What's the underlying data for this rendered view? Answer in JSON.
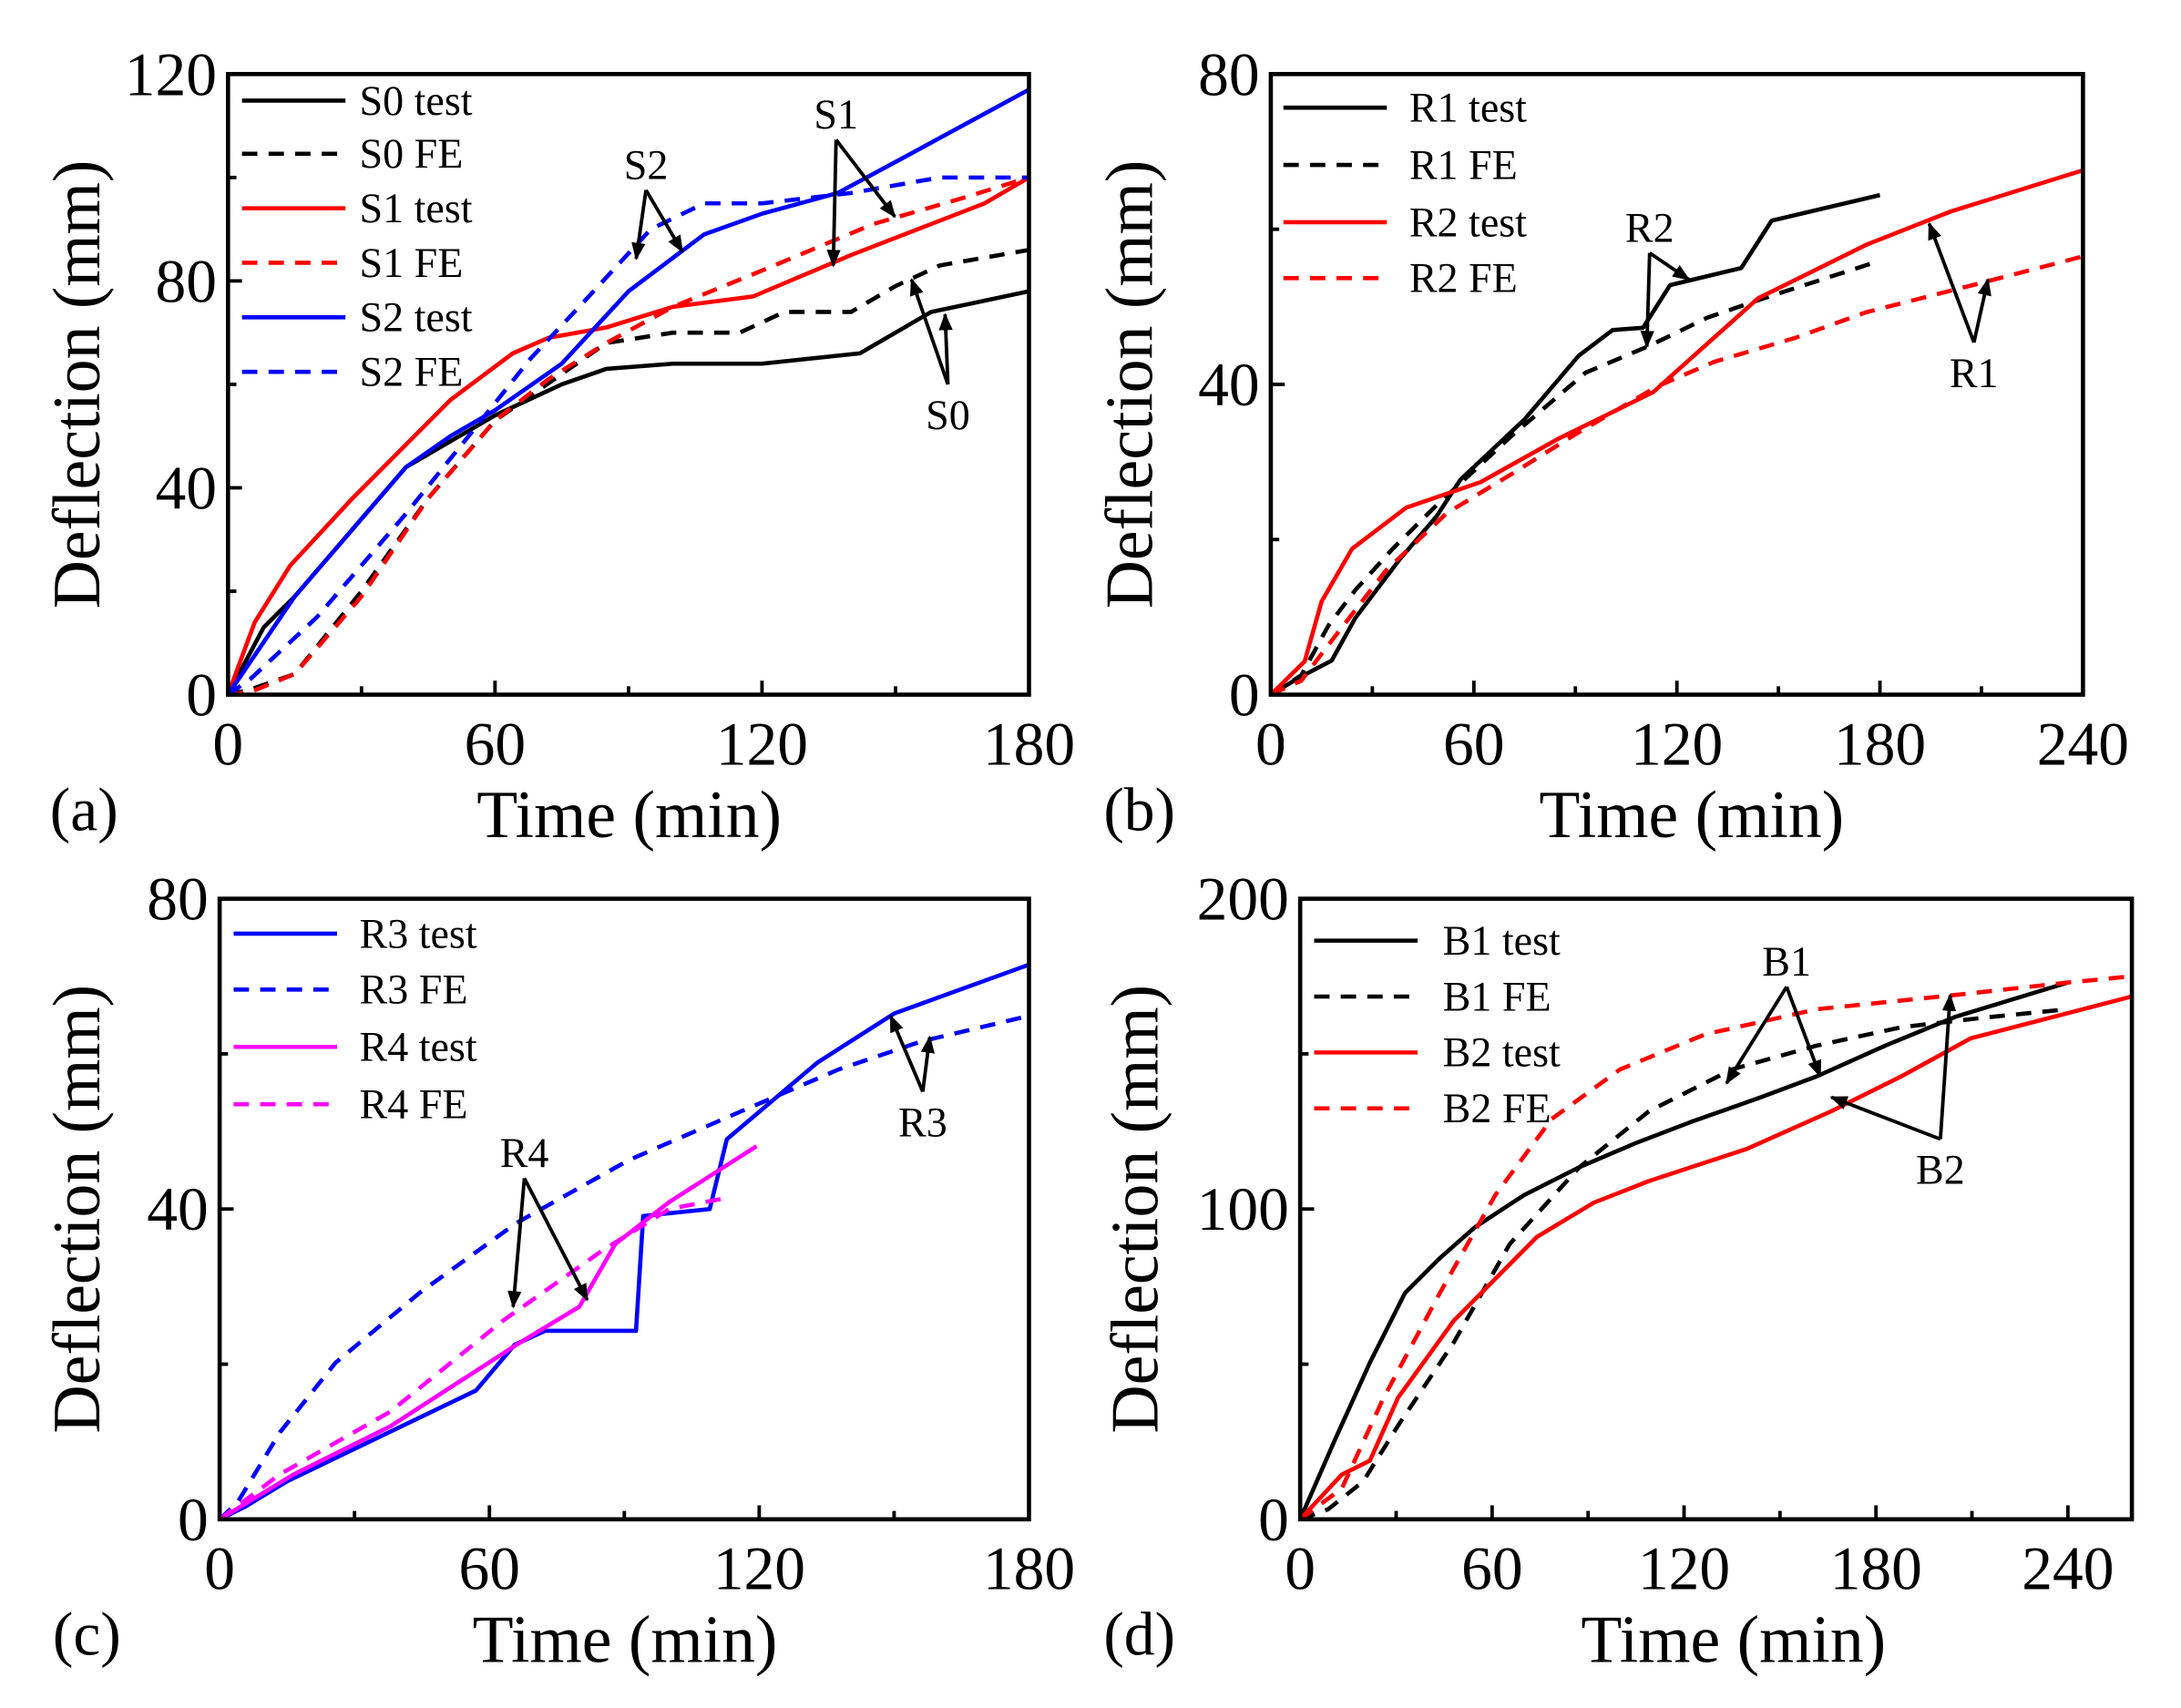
{
  "chart_data": [
    {
      "panel": "(a)",
      "type": "line",
      "xlabel": "Time (min)",
      "ylabel": "Deflection (mm)",
      "xlim": [
        0,
        180
      ],
      "ylim": [
        0,
        120
      ],
      "xticks": [
        0,
        60,
        120,
        180
      ],
      "yticks": [
        0,
        40,
        80,
        120
      ],
      "legend_position": "top-left",
      "series": [
        {
          "name": "S0 test",
          "color": "#000000",
          "dash": false,
          "points": [
            [
              0,
              0
            ],
            [
              8,
              13
            ],
            [
              15,
              19
            ],
            [
              40,
              44
            ],
            [
              60,
              54
            ],
            [
              75,
              60
            ],
            [
              85,
              63
            ],
            [
              100,
              64
            ],
            [
              120,
              64
            ],
            [
              142,
              66
            ],
            [
              158,
              74
            ],
            [
              180,
              78
            ]
          ]
        },
        {
          "name": "S0 FE",
          "color": "#000000",
          "dash": true,
          "points": [
            [
              0,
              0
            ],
            [
              5,
              1
            ],
            [
              15,
              4
            ],
            [
              30,
              20
            ],
            [
              45,
              38
            ],
            [
              60,
              53
            ],
            [
              75,
              62
            ],
            [
              85,
              68
            ],
            [
              100,
              70
            ],
            [
              115,
              70
            ],
            [
              125,
              74
            ],
            [
              140,
              74
            ],
            [
              150,
              79
            ],
            [
              160,
              83
            ],
            [
              180,
              86
            ]
          ]
        },
        {
          "name": "S1 test",
          "color": "#ff0000",
          "dash": false,
          "points": [
            [
              0,
              0
            ],
            [
              6,
              14
            ],
            [
              14,
              25
            ],
            [
              28,
              38
            ],
            [
              50,
              57
            ],
            [
              64,
              66
            ],
            [
              72,
              69
            ],
            [
              85,
              71
            ],
            [
              100,
              75
            ],
            [
              118,
              77
            ],
            [
              140,
              85
            ],
            [
              170,
              95
            ],
            [
              180,
              100
            ]
          ]
        },
        {
          "name": "S1 FE",
          "color": "#ff0000",
          "dash": true,
          "points": [
            [
              0,
              0
            ],
            [
              5,
              0.5
            ],
            [
              15,
              4
            ],
            [
              30,
              19
            ],
            [
              45,
              38
            ],
            [
              60,
              53
            ],
            [
              72,
              61
            ],
            [
              85,
              68
            ],
            [
              100,
              75
            ],
            [
              120,
              82
            ],
            [
              145,
              91
            ],
            [
              165,
              96
            ],
            [
              180,
              100
            ]
          ]
        },
        {
          "name": "S2 test",
          "color": "#0000ff",
          "dash": false,
          "points": [
            [
              0,
              0
            ],
            [
              15,
              19
            ],
            [
              40,
              44
            ],
            [
              50,
              50
            ],
            [
              60,
              55
            ],
            [
              75,
              64
            ],
            [
              90,
              78
            ],
            [
              107,
              89
            ],
            [
              120,
              93
            ],
            [
              137,
              97
            ],
            [
              150,
              103
            ],
            [
              180,
              117
            ]
          ]
        },
        {
          "name": "S2 FE",
          "color": "#0000ff",
          "dash": true,
          "points": [
            [
              0,
              0
            ],
            [
              5,
              3
            ],
            [
              20,
              15
            ],
            [
              40,
              35
            ],
            [
              55,
              51
            ],
            [
              68,
              65
            ],
            [
              80,
              76
            ],
            [
              95,
              90
            ],
            [
              107,
              95
            ],
            [
              120,
              95
            ],
            [
              140,
              97
            ],
            [
              160,
              100
            ],
            [
              180,
              100
            ]
          ]
        }
      ],
      "annotations": [
        "S2",
        "S1",
        "S0"
      ]
    },
    {
      "panel": "(b)",
      "type": "line",
      "xlabel": "Time (min)",
      "ylabel": "Deflection (mm)",
      "xlim": [
        0,
        240
      ],
      "ylim": [
        0,
        80
      ],
      "xticks": [
        0,
        60,
        120,
        180,
        240
      ],
      "yticks": [
        0,
        40,
        80
      ],
      "legend_position": "top-left",
      "series": [
        {
          "name": "R1 test",
          "color": "#000000",
          "dash": false,
          "points": [
            [
              0,
              0
            ],
            [
              8,
              2.1
            ],
            [
              18,
              4.4
            ],
            [
              25,
              9.9
            ],
            [
              38,
              17.4
            ],
            [
              49,
              23
            ],
            [
              56,
              27.7
            ],
            [
              75,
              35.5
            ],
            [
              91,
              43.7
            ],
            [
              101,
              47
            ],
            [
              110,
              47.3
            ],
            [
              118,
              52.8
            ],
            [
              139,
              55
            ],
            [
              148,
              61.1
            ],
            [
              180,
              64.4
            ]
          ]
        },
        {
          "name": "R1 FE",
          "color": "#000000",
          "dash": true,
          "points": [
            [
              0,
              0
            ],
            [
              9,
              2.5
            ],
            [
              17,
              8.9
            ],
            [
              25,
              13.5
            ],
            [
              36,
              18.8
            ],
            [
              48,
              24
            ],
            [
              71,
              33.3
            ],
            [
              93,
              41.5
            ],
            [
              112,
              45
            ],
            [
              129,
              48.6
            ],
            [
              145,
              51
            ],
            [
              179,
              55.8
            ]
          ]
        },
        {
          "name": "R2 test",
          "color": "#ff0000",
          "dash": false,
          "points": [
            [
              0,
              0
            ],
            [
              10,
              4.3
            ],
            [
              15,
              12
            ],
            [
              24,
              18.8
            ],
            [
              40,
              24.1
            ],
            [
              62,
              27.4
            ],
            [
              85,
              33
            ],
            [
              113,
              39
            ],
            [
              144,
              51.1
            ],
            [
              176,
              58
            ],
            [
              201,
              62.3
            ],
            [
              240,
              67.6
            ]
          ]
        },
        {
          "name": "R2 FE",
          "color": "#ff0000",
          "dash": true,
          "points": [
            [
              0,
              0
            ],
            [
              9,
              1.8
            ],
            [
              17,
              6.4
            ],
            [
              34,
              16
            ],
            [
              52,
              23.4
            ],
            [
              71,
              28.4
            ],
            [
              89,
              33.3
            ],
            [
              114,
              39.7
            ],
            [
              131,
              42.9
            ],
            [
              155,
              46
            ],
            [
              176,
              49.3
            ],
            [
              211,
              53.2
            ],
            [
              240,
              56.5
            ]
          ]
        }
      ],
      "annotations": [
        "R2",
        "R1"
      ]
    },
    {
      "panel": "(c)",
      "type": "line",
      "xlabel": "Time (min)",
      "ylabel": "Deflection (mm)",
      "xlim": [
        0,
        180
      ],
      "ylim": [
        0,
        80
      ],
      "xticks": [
        0,
        60,
        120,
        180
      ],
      "yticks": [
        0,
        40,
        80
      ],
      "legend_position": "top-left",
      "series": [
        {
          "name": "R3 test",
          "color": "#0000ff",
          "dash": false,
          "points": [
            [
              0,
              0
            ],
            [
              5.6,
              1.6
            ],
            [
              15,
              4.9
            ],
            [
              57,
              16.6
            ],
            [
              65.6,
              22.5
            ],
            [
              72.4,
              24.3
            ],
            [
              92.6,
              24.3
            ],
            [
              94.2,
              39.1
            ],
            [
              109,
              40
            ],
            [
              112.8,
              49
            ],
            [
              133,
              58.9
            ],
            [
              150,
              65.2
            ],
            [
              180,
              71.5
            ]
          ]
        },
        {
          "name": "R3 FE",
          "color": "#0000ff",
          "dash": true,
          "points": [
            [
              0,
              0
            ],
            [
              4,
              2.2
            ],
            [
              13.4,
              11.2
            ],
            [
              25.8,
              20.2
            ],
            [
              44.5,
              29.2
            ],
            [
              66,
              38.2
            ],
            [
              91,
              46.3
            ],
            [
              116,
              52.6
            ],
            [
              137.7,
              58
            ],
            [
              156,
              61.6
            ],
            [
              180,
              64.9
            ]
          ]
        },
        {
          "name": "R4 test",
          "color": "#ff00ff",
          "dash": false,
          "points": [
            [
              0,
              0
            ],
            [
              16.5,
              5.8
            ],
            [
              38,
              12
            ],
            [
              66,
              22.5
            ],
            [
              80,
              27.4
            ],
            [
              88,
              35.5
            ],
            [
              100,
              40.9
            ],
            [
              119.4,
              48.1
            ]
          ]
        },
        {
          "name": "R4 FE",
          "color": "#ff00ff",
          "dash": true,
          "points": [
            [
              0,
              0
            ],
            [
              13.4,
              5.8
            ],
            [
              38,
              13.9
            ],
            [
              63,
              25.6
            ],
            [
              85,
              34.6
            ],
            [
              100,
              40
            ],
            [
              111.6,
              41.3
            ]
          ]
        }
      ],
      "annotations": [
        "R4",
        "R3"
      ]
    },
    {
      "panel": "(d)",
      "type": "line",
      "xlabel": "Time (min)",
      "ylabel": "Deflection (mm)",
      "xlim": [
        0,
        260
      ],
      "ylim": [
        0,
        200
      ],
      "xticks": [
        0,
        60,
        120,
        180,
        240
      ],
      "yticks": [
        0,
        100,
        200
      ],
      "legend_position": "top-left",
      "series": [
        {
          "name": "B1 test",
          "color": "#000000",
          "dash": false,
          "points": [
            [
              0,
              0
            ],
            [
              10.9,
              25.7
            ],
            [
              21.8,
              50.5
            ],
            [
              32.8,
              73
            ],
            [
              43.7,
              84.2
            ],
            [
              54.6,
              94.1
            ],
            [
              70,
              104.5
            ],
            [
              87.3,
              113.5
            ],
            [
              104.8,
              121.2
            ],
            [
              122,
              128
            ],
            [
              144,
              136
            ],
            [
              161.6,
              142.8
            ],
            [
              183,
              152.7
            ],
            [
              205,
              162
            ],
            [
              240,
              173
            ]
          ]
        },
        {
          "name": "B1 FE",
          "color": "#000000",
          "dash": true,
          "points": [
            [
              0,
              0
            ],
            [
              8.7,
              3.2
            ],
            [
              19.7,
              12.2
            ],
            [
              30.6,
              30.2
            ],
            [
              48,
              57
            ],
            [
              65.5,
              88.7
            ],
            [
              87.3,
              113.5
            ],
            [
              109,
              131.5
            ],
            [
              135,
              145
            ],
            [
              161.6,
              152.7
            ],
            [
              188,
              158.6
            ],
            [
              214,
              161.7
            ],
            [
              240,
              164.4
            ]
          ]
        },
        {
          "name": "B2 test",
          "color": "#ff0000",
          "dash": false,
          "points": [
            [
              0,
              0
            ],
            [
              13,
              14.4
            ],
            [
              21.8,
              18.9
            ],
            [
              30.6,
              39.2
            ],
            [
              48,
              64
            ],
            [
              61,
              77.5
            ],
            [
              74,
              91
            ],
            [
              91.7,
              102
            ],
            [
              109,
              109
            ],
            [
              139.7,
              119.4
            ],
            [
              166,
              131.5
            ],
            [
              188,
              142.8
            ],
            [
              209.6,
              155
            ],
            [
              235.8,
              162
            ],
            [
              260,
              168.5
            ]
          ]
        },
        {
          "name": "B2 FE",
          "color": "#ff0000",
          "dash": true,
          "points": [
            [
              0,
              0
            ],
            [
              13,
              9.9
            ],
            [
              26,
              39
            ],
            [
              43.7,
              73
            ],
            [
              61,
              104.5
            ],
            [
              78.6,
              129
            ],
            [
              100,
              145
            ],
            [
              126.6,
              156.3
            ],
            [
              161.6,
              164.4
            ],
            [
              205,
              169
            ],
            [
              240,
              173
            ],
            [
              260,
              175
            ]
          ]
        }
      ],
      "annotations": [
        "B1",
        "B2"
      ]
    }
  ]
}
